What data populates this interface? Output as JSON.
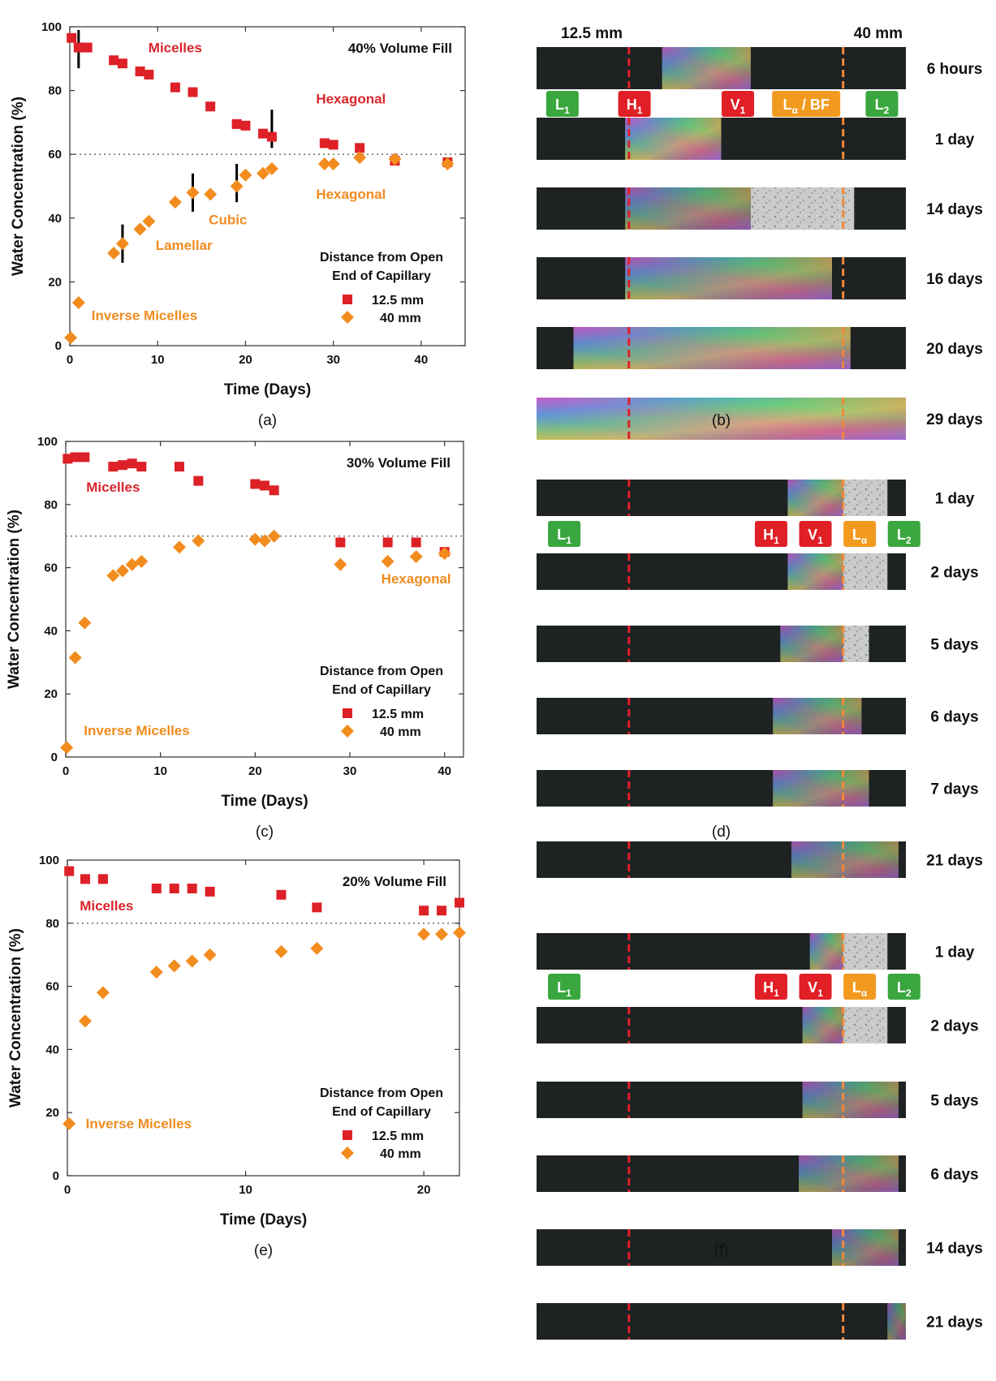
{
  "colors": {
    "sq": "#dd2127",
    "dia": "#f28c1e",
    "ann_red": "#d9252b",
    "ann_orange": "#ef8c20",
    "L": "#3aa63f",
    "H": "#e01f26",
    "V": "#e01f26",
    "La": "#f29a1f",
    "dash_red": "#e0202a",
    "dash_orange": "#f0883a",
    "strip": "#1e2222"
  },
  "chart_data": [
    {
      "type": "scatter",
      "id": "a",
      "caption": "(a)",
      "title": "40% Volume Fill",
      "xlabel": "Time (Days)",
      "ylabel": "Water Concentration (%)",
      "xlim": [
        0,
        45
      ],
      "ylim": [
        0,
        100
      ],
      "xticks": [
        0,
        10,
        20,
        30,
        40
      ],
      "yticks": [
        0,
        20,
        40,
        60,
        80,
        100
      ],
      "hline": 60,
      "legend": {
        "title1": "Distance from Open",
        "title2": "End of Capillary",
        "s1": "12.5 mm",
        "s2": "40 mm"
      },
      "series": [
        {
          "name": "12.5 mm",
          "marker": "square",
          "x": [
            0.2,
            1,
            2,
            5,
            6,
            8,
            9,
            12,
            14,
            16,
            19,
            20,
            22,
            23,
            29,
            30,
            33,
            37,
            43
          ],
          "y": [
            96.5,
            93.5,
            93.5,
            89.5,
            88.5,
            86,
            85,
            81,
            79.5,
            75,
            69.5,
            69,
            66.5,
            65.5,
            63.5,
            63,
            62,
            58,
            57.5
          ]
        },
        {
          "name": "40 mm",
          "marker": "diamond",
          "x": [
            0.1,
            1,
            5,
            6,
            8,
            9,
            12,
            14,
            16,
            19,
            20,
            22,
            23,
            29,
            30,
            33,
            37,
            43
          ],
          "y": [
            2.5,
            13.5,
            29,
            32,
            36.5,
            39,
            45,
            48,
            47.5,
            50,
            53.5,
            54,
            55.5,
            57,
            57,
            59,
            58.5,
            57
          ]
        }
      ],
      "errorbars": [
        [
          1,
          93,
          6
        ],
        [
          6,
          32,
          6
        ],
        [
          14,
          48,
          6
        ],
        [
          19,
          51,
          6
        ],
        [
          23,
          68,
          6
        ]
      ],
      "annotations": [
        {
          "text": "Micelles",
          "x": 12,
          "y": 92,
          "color": "red"
        },
        {
          "text": "Hexagonal",
          "x": 32,
          "y": 76,
          "color": "red"
        },
        {
          "text": "Hexagonal",
          "x": 32,
          "y": 46,
          "color": "orange"
        },
        {
          "text": "Cubic",
          "x": 18,
          "y": 38,
          "color": "orange"
        },
        {
          "text": "Lamellar",
          "x": 13,
          "y": 30,
          "color": "orange"
        },
        {
          "text": "Inverse Micelles",
          "x": 8.5,
          "y": 8,
          "color": "orange"
        }
      ]
    },
    {
      "type": "scatter",
      "id": "c",
      "caption": "(c)",
      "title": "30% Volume Fill",
      "xlabel": "Time (Days)",
      "ylabel": "Water Concentration (%)",
      "xlim": [
        0,
        42
      ],
      "ylim": [
        0,
        100
      ],
      "xticks": [
        0,
        10,
        20,
        30,
        40
      ],
      "yticks": [
        0,
        20,
        40,
        60,
        80,
        100
      ],
      "hline": 70,
      "legend": {
        "title1": "Distance from Open",
        "title2": "End of Capillary",
        "s1": "12.5 mm",
        "s2": "40 mm"
      },
      "series": [
        {
          "name": "12.5 mm",
          "marker": "square",
          "x": [
            0.2,
            1,
            2,
            5,
            6,
            7,
            8,
            12,
            14,
            20,
            21,
            22,
            29,
            34,
            37,
            40
          ],
          "y": [
            94.5,
            95,
            95,
            92,
            92.5,
            93,
            92,
            92,
            87.5,
            86.5,
            86,
            84.5,
            68,
            68,
            68,
            65
          ]
        },
        {
          "name": "40 mm",
          "marker": "diamond",
          "x": [
            0.1,
            1,
            2,
            5,
            6,
            7,
            8,
            12,
            14,
            20,
            21,
            22,
            29,
            34,
            37,
            40
          ],
          "y": [
            3,
            31.5,
            42.5,
            57.5,
            59,
            61,
            62,
            66.5,
            68.5,
            69,
            68.5,
            70,
            61,
            62,
            63.5,
            64.5
          ]
        }
      ],
      "errorbars": [],
      "annotations": [
        {
          "text": "Micelles",
          "x": 5,
          "y": 84,
          "color": "red"
        },
        {
          "text": "Hexagonal",
          "x": 37,
          "y": 55,
          "color": "orange"
        },
        {
          "text": "Inverse Micelles",
          "x": 7.5,
          "y": 7,
          "color": "orange"
        }
      ]
    },
    {
      "type": "scatter",
      "id": "e",
      "caption": "(e)",
      "title": "20% Volume Fill",
      "xlabel": "Time (Days)",
      "ylabel": "Water Concentration (%)",
      "xlim": [
        0,
        22
      ],
      "ylim": [
        0,
        100
      ],
      "xticks": [
        0,
        10,
        20
      ],
      "yticks": [
        0,
        20,
        40,
        60,
        80,
        100
      ],
      "hline": 80,
      "legend": {
        "title1": "Distance from Open",
        "title2": "End of Capillary",
        "s1": "12.5 mm",
        "s2": "40 mm"
      },
      "series": [
        {
          "name": "12.5 mm",
          "marker": "square",
          "x": [
            0.1,
            1,
            2,
            5,
            6,
            7,
            8,
            12,
            14,
            20,
            21,
            22
          ],
          "y": [
            96.5,
            94,
            94,
            91,
            91,
            91,
            90,
            89,
            85,
            84,
            84,
            86.5
          ]
        },
        {
          "name": "40 mm",
          "marker": "diamond",
          "x": [
            0.1,
            1,
            2,
            5,
            6,
            7,
            8,
            12,
            14,
            20,
            21,
            22
          ],
          "y": [
            16.5,
            49,
            58,
            64.5,
            66.5,
            68,
            70,
            71,
            72,
            76.5,
            76.5,
            77
          ]
        }
      ],
      "errorbars": [],
      "annotations": [
        {
          "text": "Micelles",
          "x": 2.2,
          "y": 84,
          "color": "red"
        },
        {
          "text": "Inverse Micelles",
          "x": 4,
          "y": 15,
          "color": "orange"
        }
      ]
    }
  ],
  "panels": [
    {
      "id": "b",
      "caption": "(b)",
      "header_left": "12.5 mm",
      "header_right": "40 mm",
      "strips": [
        {
          "label": "6 hours",
          "f0": 0.34,
          "f1": 0.58,
          "f2": 0.0,
          "bright": 0.7
        },
        {
          "label": "1 day",
          "f0": 0.24,
          "f1": 0.5,
          "f2": 0.5,
          "bright": 0.8
        },
        {
          "label": "14 days",
          "f0": 0.24,
          "f1": 0.58,
          "f2": 0.86,
          "bright": 0.6
        },
        {
          "label": "16 days",
          "f0": 0.24,
          "f1": 0.8,
          "f2": 0.8,
          "bright": 0.7
        },
        {
          "label": "20 days",
          "f0": 0.1,
          "f1": 0.85,
          "f2": 0.85,
          "bright": 0.8
        },
        {
          "label": "29 days",
          "f0": 0.0,
          "f1": 1.0,
          "f2": 1.0,
          "bright": 0.9
        }
      ],
      "phase_labels": [
        {
          "main": "L",
          "sub": "1",
          "color": "L",
          "pos": 0.07
        },
        {
          "main": "H",
          "sub": "1",
          "color": "H",
          "pos": 0.265
        },
        {
          "main": "V",
          "sub": "1",
          "color": "V",
          "pos": 0.545
        },
        {
          "main": "L",
          "sub": "α",
          "suffix": " / BF",
          "color": "La",
          "pos": 0.73
        },
        {
          "main": "L",
          "sub": "2",
          "color": "L",
          "pos": 0.935
        }
      ],
      "dash_red": 0.25,
      "dash_orange": 0.83
    },
    {
      "id": "d",
      "caption": "(d)",
      "strips": [
        {
          "label": "1 day",
          "f0": 0.68,
          "f1": 0.83,
          "f2": 0.95,
          "bright": 0.7
        },
        {
          "label": "2 days",
          "f0": 0.68,
          "f1": 0.83,
          "f2": 0.95,
          "bright": 0.7
        },
        {
          "label": "5 days",
          "f0": 0.66,
          "f1": 0.83,
          "f2": 0.9,
          "bright": 0.6
        },
        {
          "label": "6 days",
          "f0": 0.64,
          "f1": 0.88,
          "f2": 0.88,
          "bright": 0.6
        },
        {
          "label": "7 days",
          "f0": 0.64,
          "f1": 0.9,
          "f2": 0.9,
          "bright": 0.6
        },
        {
          "label": "21 days",
          "f0": 0.69,
          "f1": 0.98,
          "f2": 0.98,
          "bright": 0.55
        }
      ],
      "phase_labels": [
        {
          "main": "L",
          "sub": "1",
          "color": "L",
          "pos": 0.075
        },
        {
          "main": "H",
          "sub": "1",
          "color": "H",
          "pos": 0.635
        },
        {
          "main": "V",
          "sub": "1",
          "color": "V",
          "pos": 0.755
        },
        {
          "main": "L",
          "sub": "α",
          "color": "La",
          "pos": 0.875
        },
        {
          "main": "L",
          "sub": "2",
          "color": "L",
          "pos": 0.995
        }
      ],
      "dash_red": 0.25,
      "dash_orange": 0.83
    },
    {
      "id": "f",
      "caption": "(f)",
      "strips": [
        {
          "label": "1 day",
          "f0": 0.74,
          "f1": 0.83,
          "f2": 0.95,
          "bright": 0.65
        },
        {
          "label": "2 days",
          "f0": 0.72,
          "f1": 0.83,
          "f2": 0.95,
          "bright": 0.6
        },
        {
          "label": "5 days",
          "f0": 0.72,
          "f1": 0.98,
          "f2": 0.98,
          "bright": 0.55
        },
        {
          "label": "6 days",
          "f0": 0.71,
          "f1": 0.98,
          "f2": 0.98,
          "bright": 0.55
        },
        {
          "label": "14 days",
          "f0": 0.8,
          "f1": 0.98,
          "f2": 0.98,
          "bright": 0.5
        },
        {
          "label": "21 days",
          "f0": 0.95,
          "f1": 1.0,
          "f2": 1.0,
          "bright": 0.4
        }
      ],
      "phase_labels": [
        {
          "main": "L",
          "sub": "1",
          "color": "L",
          "pos": 0.075
        },
        {
          "main": "H",
          "sub": "1",
          "color": "H",
          "pos": 0.635
        },
        {
          "main": "V",
          "sub": "1",
          "color": "V",
          "pos": 0.755
        },
        {
          "main": "L",
          "sub": "α",
          "color": "La",
          "pos": 0.875
        },
        {
          "main": "L",
          "sub": "2",
          "color": "L",
          "pos": 0.995
        }
      ],
      "dash_red": 0.25,
      "dash_orange": 0.83
    }
  ]
}
